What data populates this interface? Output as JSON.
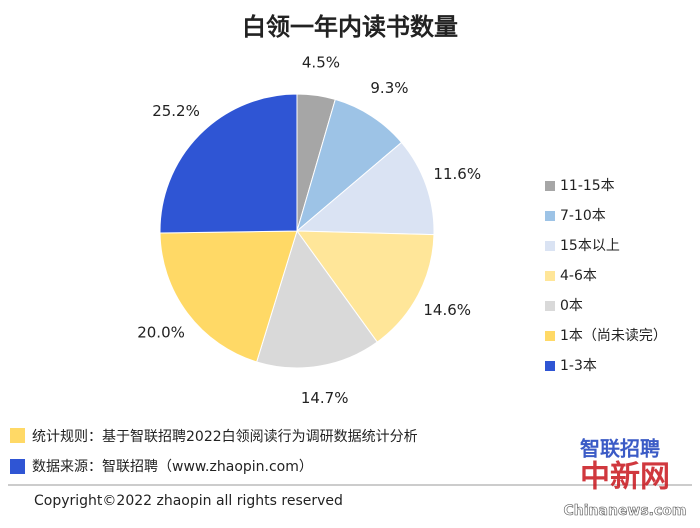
{
  "chart_data": {
    "type": "pie",
    "title": "白领一年内读书数量",
    "categories": [
      "11-15本",
      "7-10本",
      "15本以上",
      "4-6本",
      "0本",
      "1本（尚未读完）",
      "1-3本"
    ],
    "values": [
      4.5,
      9.3,
      11.6,
      14.6,
      14.7,
      20.0,
      25.2
    ],
    "value_labels": [
      "4.5%",
      "9.3%",
      "11.6%",
      "14.6%",
      "14.7%",
      "20.0%",
      "25.2%"
    ],
    "colors": [
      "#a6a6a6",
      "#9dc3e6",
      "#dae3f3",
      "#ffe699",
      "#d9d9d9",
      "#ffd966",
      "#2f55d4"
    ],
    "legend": "right"
  },
  "footer": {
    "rule": "统计规则：基于智联招聘2022白领阅读行为调研数据统计分析",
    "source": "数据来源：智联招聘（www.zhaopin.com）",
    "copyright": "Copyright©2022 zhaopin all rights reserved",
    "watermark": [
      "智联招聘",
      "中新网",
      "Chinanews.com"
    ]
  }
}
